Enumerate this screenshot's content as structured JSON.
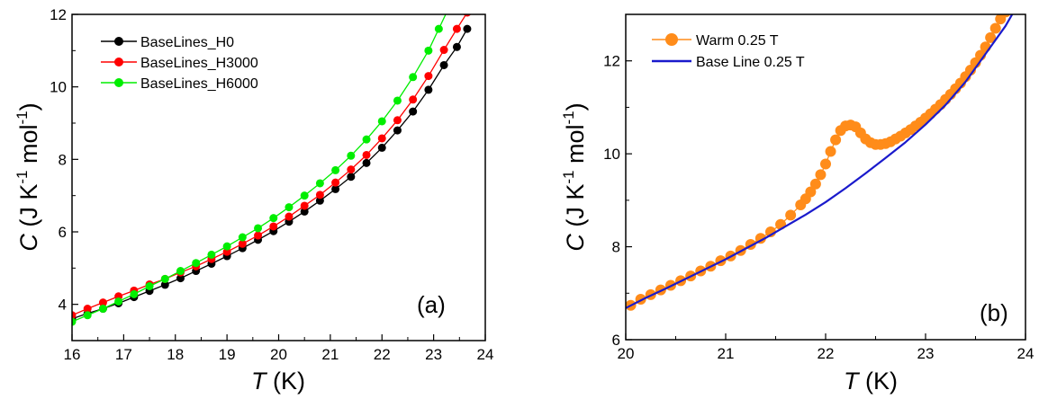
{
  "chart_data": [
    {
      "type": "line",
      "panel_label": "(a)",
      "xlabel": {
        "var": "T",
        "unit": " (K)"
      },
      "ylabel": {
        "var": "C",
        "unit": " (J K",
        "exp1": "-1",
        "mid": " mol",
        "exp2": "-1",
        "close": ")"
      },
      "xlim": [
        16,
        24
      ],
      "ylim": [
        3,
        12
      ],
      "xticks": [
        "16",
        "17",
        "18",
        "19",
        "20",
        "21",
        "22",
        "23",
        "24"
      ],
      "yticks": [
        "4",
        "6",
        "8",
        "10",
        "12"
      ],
      "legend_position": "top-left",
      "grid": false,
      "series": [
        {
          "name": "BaseLines_H0",
          "color": "#000000",
          "x": [
            16.0,
            16.3,
            16.6,
            16.9,
            17.2,
            17.5,
            17.8,
            18.1,
            18.4,
            18.7,
            19.0,
            19.3,
            19.6,
            19.9,
            20.2,
            20.5,
            20.8,
            21.1,
            21.4,
            21.7,
            22.0,
            22.3,
            22.6,
            22.9,
            23.2,
            23.45,
            23.65
          ],
          "y": [
            3.6,
            3.75,
            3.88,
            4.03,
            4.2,
            4.37,
            4.54,
            4.72,
            4.92,
            5.12,
            5.33,
            5.55,
            5.78,
            6.02,
            6.28,
            6.56,
            6.86,
            7.18,
            7.52,
            7.9,
            8.32,
            8.8,
            9.32,
            9.92,
            10.6,
            11.1,
            11.6
          ]
        },
        {
          "name": "BaseLines_H3000",
          "color": "#ff0000",
          "x": [
            16.0,
            16.3,
            16.6,
            16.9,
            17.2,
            17.5,
            17.8,
            18.1,
            18.4,
            18.7,
            19.0,
            19.3,
            19.6,
            19.9,
            20.2,
            20.5,
            20.8,
            21.1,
            21.4,
            21.7,
            22.0,
            22.3,
            22.6,
            22.9,
            23.2,
            23.45,
            23.65
          ],
          "y": [
            3.7,
            3.88,
            4.05,
            4.22,
            4.38,
            4.55,
            4.7,
            4.88,
            5.05,
            5.25,
            5.45,
            5.67,
            5.9,
            6.15,
            6.42,
            6.72,
            7.02,
            7.36,
            7.72,
            8.12,
            8.58,
            9.08,
            9.65,
            10.3,
            11.02,
            11.6,
            12.05
          ]
        },
        {
          "name": "BaseLines_H6000",
          "color": "#00ee00",
          "x": [
            16.0,
            16.3,
            16.6,
            16.9,
            17.2,
            17.5,
            17.8,
            18.1,
            18.4,
            18.7,
            19.0,
            19.3,
            19.6,
            19.9,
            20.2,
            20.5,
            20.8,
            21.1,
            21.4,
            21.7,
            22.0,
            22.3,
            22.6,
            22.9,
            23.1,
            23.3
          ],
          "y": [
            3.52,
            3.7,
            3.88,
            4.08,
            4.28,
            4.5,
            4.7,
            4.92,
            5.14,
            5.37,
            5.6,
            5.85,
            6.1,
            6.38,
            6.68,
            7.0,
            7.34,
            7.7,
            8.1,
            8.55,
            9.05,
            9.62,
            10.27,
            11.0,
            11.6,
            12.2
          ]
        }
      ]
    },
    {
      "type": "line",
      "panel_label": "(b)",
      "xlabel": {
        "var": "T",
        "unit": " (K)"
      },
      "ylabel": {
        "var": "C",
        "unit": " (J K",
        "exp1": "-1",
        "mid": " mol",
        "exp2": "-1",
        "close": ")"
      },
      "xlim": [
        20,
        24
      ],
      "ylim": [
        6,
        13
      ],
      "xticks": [
        "20",
        "21",
        "22",
        "23",
        "24"
      ],
      "yticks": [
        "6",
        "8",
        "10",
        "12"
      ],
      "legend_position": "top-left",
      "grid": false,
      "series": [
        {
          "name": "Warm 0.25 T",
          "color": "#ff8c1a",
          "style": "line-markers",
          "x": [
            20.05,
            20.15,
            20.25,
            20.35,
            20.45,
            20.55,
            20.65,
            20.75,
            20.85,
            20.95,
            21.05,
            21.15,
            21.25,
            21.35,
            21.45,
            21.55,
            21.65,
            21.75,
            21.8,
            21.85,
            21.9,
            21.95,
            22.0,
            22.05,
            22.1,
            22.15,
            22.2,
            22.25,
            22.3,
            22.35,
            22.4,
            22.45,
            22.5,
            22.55,
            22.6,
            22.65,
            22.7,
            22.75,
            22.8,
            22.85,
            22.9,
            22.95,
            23.0,
            23.05,
            23.1,
            23.15,
            23.2,
            23.25,
            23.3,
            23.35,
            23.4,
            23.45,
            23.5,
            23.55,
            23.6,
            23.65,
            23.7,
            23.75,
            23.8,
            23.85
          ],
          "y": [
            6.74,
            6.87,
            6.97,
            7.07,
            7.17,
            7.27,
            7.37,
            7.48,
            7.58,
            7.7,
            7.8,
            7.92,
            8.05,
            8.18,
            8.32,
            8.48,
            8.68,
            8.9,
            9.03,
            9.18,
            9.35,
            9.55,
            9.78,
            10.05,
            10.3,
            10.5,
            10.6,
            10.62,
            10.58,
            10.45,
            10.32,
            10.24,
            10.2,
            10.2,
            10.22,
            10.26,
            10.32,
            10.38,
            10.45,
            10.52,
            10.6,
            10.68,
            10.77,
            10.86,
            10.96,
            11.06,
            11.17,
            11.28,
            11.4,
            11.52,
            11.66,
            11.8,
            11.96,
            12.12,
            12.3,
            12.5,
            12.7,
            12.9,
            13.05,
            13.2
          ]
        },
        {
          "name": "Base Line 0.25 T",
          "color": "#1a1acc",
          "style": "line",
          "x": [
            20.0,
            20.2,
            20.4,
            20.6,
            20.8,
            21.0,
            21.2,
            21.4,
            21.6,
            21.8,
            22.0,
            22.2,
            22.4,
            22.6,
            22.8,
            23.0,
            23.2,
            23.4,
            23.6,
            23.8,
            23.92
          ],
          "y": [
            6.68,
            6.9,
            7.1,
            7.31,
            7.52,
            7.73,
            7.96,
            8.19,
            8.44,
            8.69,
            8.96,
            9.26,
            9.58,
            9.91,
            10.25,
            10.63,
            11.05,
            11.55,
            12.15,
            12.75,
            13.2
          ]
        }
      ]
    }
  ]
}
